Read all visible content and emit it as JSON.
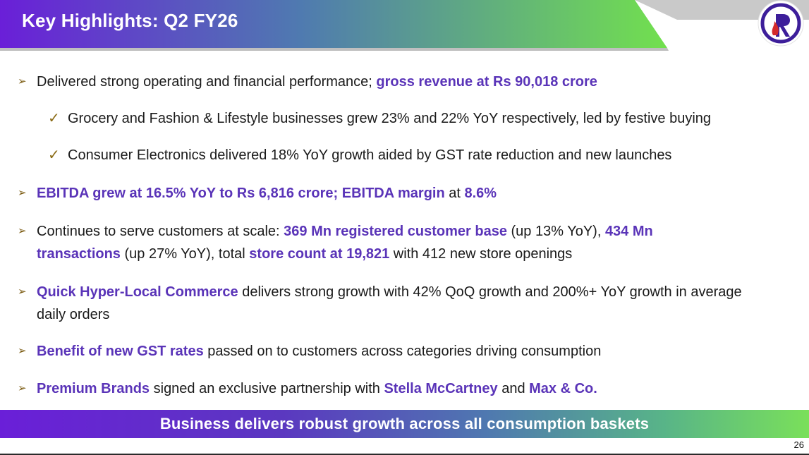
{
  "header": {
    "title": "Key Highlights: Q2 FY26",
    "logo": "reliance-logo",
    "colors": {
      "start": "#6a1fd8",
      "mid": "#4f7ab0",
      "end": "#72e04e",
      "logo_ring": "#3d1e9a",
      "logo_flame": "#d42a2a"
    }
  },
  "bullets": [
    {
      "marker": "➢",
      "type": "main",
      "segments": [
        {
          "text": "Delivered strong operating and financial performance; ",
          "highlight": false
        },
        {
          "text": "gross revenue at Rs 90,018 crore",
          "highlight": true
        }
      ]
    },
    {
      "marker": "✓",
      "type": "sub",
      "segments": [
        {
          "text": "Grocery and Fashion & Lifestyle businesses grew 23% and 22% YoY respectively, led by festive buying",
          "highlight": false
        }
      ]
    },
    {
      "marker": "✓",
      "type": "sub",
      "segments": [
        {
          "text": "Consumer Electronics delivered 18% YoY growth aided by GST rate reduction and new launches",
          "highlight": false
        }
      ]
    },
    {
      "marker": "➢",
      "type": "main",
      "segments": [
        {
          "text": "EBITDA grew at 16.5% YoY to Rs 6,816 crore; EBITDA margin",
          "highlight": true
        },
        {
          "text": " at ",
          "highlight": false
        },
        {
          "text": "8.6%",
          "highlight": true
        }
      ]
    },
    {
      "marker": "➢",
      "type": "main",
      "segments": [
        {
          "text": "Continues to serve customers at scale: ",
          "highlight": false
        },
        {
          "text": "369 Mn registered customer base",
          "highlight": true
        },
        {
          "text": " (up 13% YoY), ",
          "highlight": false
        },
        {
          "text": "434 Mn transactions",
          "highlight": true
        },
        {
          "text": " (up 27% YoY), total ",
          "highlight": false
        },
        {
          "text": "store count at 19,821",
          "highlight": true
        },
        {
          "text": " with 412 new store openings",
          "highlight": false
        }
      ]
    },
    {
      "marker": "➢",
      "type": "main",
      "segments": [
        {
          "text": "Quick Hyper-Local Commerce",
          "highlight": true
        },
        {
          "text": " delivers strong growth with 42% QoQ growth and 200%+ YoY growth in average daily orders",
          "highlight": false
        }
      ]
    },
    {
      "marker": "➢",
      "type": "main",
      "segments": [
        {
          "text": "Benefit of new GST rates",
          "highlight": true
        },
        {
          "text": " passed on to customers across categories driving consumption",
          "highlight": false
        }
      ]
    },
    {
      "marker": "➢",
      "type": "main",
      "segments": [
        {
          "text": "Premium Brands",
          "highlight": true
        },
        {
          "text": " signed an exclusive partnership with ",
          "highlight": false
        },
        {
          "text": "Stella McCartney",
          "highlight": true
        },
        {
          "text": " and ",
          "highlight": false
        },
        {
          "text": "Max & Co.",
          "highlight": true
        }
      ]
    }
  ],
  "footer": {
    "banner_text": "Business delivers robust growth across all consumption baskets",
    "page_number": "26"
  }
}
